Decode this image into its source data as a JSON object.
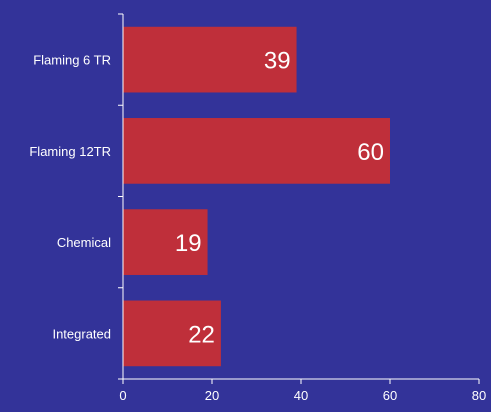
{
  "chart_data": {
    "type": "bar",
    "orientation": "horizontal",
    "categories": [
      "Flaming 6 TR",
      "Flaming 12TR",
      "Chemical",
      "Integrated"
    ],
    "values": [
      39,
      60,
      19,
      22
    ],
    "title": "",
    "xlabel": "",
    "ylabel": "",
    "xlim": [
      0,
      80
    ],
    "xticks": [
      0,
      20,
      40,
      60,
      80
    ],
    "grid": false,
    "legend": "none",
    "data_labels": true,
    "colors": {
      "background": "#333399",
      "bar": "#BF2F3A",
      "axis": "#FFFFFF",
      "text": "#FFFFFF"
    }
  }
}
